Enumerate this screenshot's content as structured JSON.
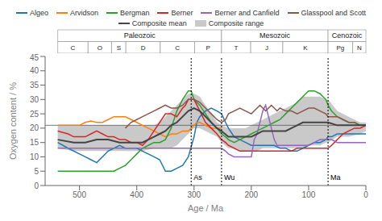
{
  "chart_data": {
    "type": "line",
    "xlabel": "Age / Ma",
    "ylabel": "Oxygen content / %",
    "xlim": [
      560,
      0
    ],
    "ylim": [
      0,
      45
    ],
    "xticks": [
      500,
      400,
      300,
      200,
      100,
      0
    ],
    "yticks": [
      0,
      5,
      10,
      15,
      20,
      25,
      30,
      35,
      40,
      45
    ],
    "grid": false,
    "legend": "top",
    "series": [
      {
        "name": "Algeo",
        "color": "#1f77b4",
        "x": [
          538,
          520,
          500,
          490,
          480,
          470,
          460,
          450,
          440,
          430,
          420,
          410,
          400,
          390,
          380,
          370,
          360,
          350,
          340,
          330,
          320,
          310,
          300,
          295,
          290,
          280,
          270,
          260,
          252,
          245,
          240,
          230,
          220,
          210,
          200,
          190,
          180,
          170,
          160,
          150,
          140,
          130,
          120,
          110,
          100,
          90,
          80,
          70,
          66,
          60,
          50,
          40,
          30,
          20,
          10,
          0
        ],
        "values": [
          15,
          13,
          11,
          10,
          9,
          8,
          10,
          12,
          13,
          14,
          13,
          13,
          13,
          12,
          11,
          10,
          9,
          5,
          5,
          6,
          7,
          10,
          17,
          22,
          24,
          26,
          27,
          26,
          25,
          22,
          20,
          17,
          16,
          15,
          14,
          14,
          14,
          14,
          14,
          13,
          13,
          12,
          12,
          13,
          14,
          15,
          15,
          16,
          17,
          17,
          18,
          18,
          18,
          18,
          18,
          18
        ]
      },
      {
        "name": "Arvidson",
        "color": "#ff7f0e",
        "x": [
          538,
          520,
          510,
          500,
          490,
          480,
          470,
          460,
          450,
          440,
          430,
          420,
          410,
          400,
          390,
          380,
          370,
          360,
          350,
          340,
          330,
          320,
          310,
          305,
          300,
          295,
          290,
          280,
          270,
          260,
          252
        ],
        "values": [
          21,
          21,
          21,
          21,
          22,
          22.5,
          22,
          22,
          23,
          24,
          24,
          24,
          23,
          22,
          21,
          20,
          19,
          18,
          17,
          18,
          18,
          19,
          19,
          20,
          21,
          22,
          22,
          21,
          20,
          20,
          20
        ]
      },
      {
        "name": "Bergman",
        "color": "#2ca02c",
        "x": [
          538,
          520,
          510,
          500,
          490,
          480,
          470,
          460,
          450,
          440,
          430,
          420,
          410,
          400,
          390,
          380,
          370,
          360,
          350,
          340,
          330,
          320,
          310,
          305,
          300,
          290,
          280,
          270,
          260,
          252,
          245,
          240,
          230,
          220,
          210,
          200,
          190,
          180,
          170,
          160,
          150,
          140,
          130,
          120,
          110,
          100,
          90,
          80,
          70,
          66,
          60,
          50,
          40,
          30,
          20,
          10,
          0
        ],
        "values": [
          5,
          5,
          5,
          5,
          5,
          5,
          5,
          5,
          5,
          5,
          6,
          7,
          9,
          11,
          13,
          14,
          15,
          15,
          16,
          20,
          26,
          30,
          33,
          33,
          30,
          28,
          25,
          22,
          20,
          18,
          17,
          16,
          15,
          16,
          17,
          18,
          19,
          20,
          21,
          22,
          23,
          25,
          27,
          29,
          31,
          33,
          33,
          32,
          30,
          28,
          26,
          24,
          23,
          22,
          22,
          21,
          21
        ]
      },
      {
        "name": "Berner",
        "color": "#d62728",
        "x": [
          538,
          520,
          510,
          500,
          490,
          480,
          470,
          460,
          450,
          440,
          430,
          420,
          410,
          400,
          390,
          380,
          370,
          360,
          350,
          340,
          330,
          320,
          315,
          310,
          305,
          300,
          295,
          290,
          280,
          270,
          260,
          252,
          245,
          240,
          230,
          220,
          210,
          200,
          190,
          180,
          170,
          160,
          150,
          140,
          130,
          120,
          110,
          100,
          90,
          80,
          70,
          66,
          60,
          50,
          40,
          30,
          20,
          10,
          0
        ],
        "values": [
          19,
          18,
          17,
          17,
          17,
          18,
          19,
          18,
          17,
          17,
          16,
          16,
          15,
          15,
          14,
          16,
          19,
          22,
          25,
          25,
          24,
          27,
          28,
          30,
          30,
          30,
          28,
          26,
          22,
          20,
          18,
          16,
          15,
          14,
          13,
          12,
          12,
          12,
          12,
          12,
          12,
          12,
          12,
          12,
          12,
          13,
          13,
          13,
          13,
          13,
          13,
          13,
          14,
          16,
          18,
          19,
          20,
          20,
          21
        ]
      },
      {
        "name": "Berner and Canfield",
        "color": "#9467bd",
        "x": [
          538,
          520,
          510,
          500,
          490,
          480,
          470,
          460,
          450,
          440,
          430,
          420,
          410,
          400,
          390,
          380,
          370,
          360,
          350,
          340,
          330,
          320,
          310,
          300,
          290,
          280,
          270,
          260,
          252,
          245,
          240,
          230,
          220,
          210,
          200,
          195,
          190,
          185,
          180,
          175,
          170,
          165,
          160,
          155,
          150,
          140,
          130,
          120,
          110,
          100,
          90,
          80,
          70,
          66,
          60,
          50,
          40,
          30,
          20,
          10,
          0
        ],
        "values": [
          13,
          13,
          13,
          13,
          13,
          13,
          13,
          13,
          13,
          13,
          13,
          13,
          13,
          13,
          13,
          13,
          13,
          13,
          13,
          13,
          13,
          13,
          13,
          13,
          13,
          13,
          13,
          13,
          13,
          12,
          11,
          10,
          10,
          10,
          10,
          16,
          18,
          22,
          26,
          28,
          24,
          20,
          16,
          14,
          14,
          14,
          14,
          14,
          14,
          14,
          15,
          16,
          16,
          16,
          16,
          15,
          15,
          15,
          15,
          15,
          15
        ]
      },
      {
        "name": "Glasspool and Scott",
        "color": "#8c564b",
        "x": [
          420,
          410,
          400,
          390,
          380,
          370,
          360,
          350,
          340,
          330,
          320,
          310,
          300,
          290,
          280,
          270,
          260,
          252,
          245,
          240,
          230,
          220,
          210,
          200,
          195,
          190,
          185,
          180,
          175,
          170,
          165,
          160,
          155,
          150,
          140,
          130,
          120,
          110,
          100,
          90,
          80,
          70,
          66,
          60,
          50,
          40,
          30,
          20,
          10,
          0
        ],
        "values": [
          20,
          22,
          23,
          24,
          25,
          26,
          27,
          28,
          27,
          27,
          28,
          30,
          30,
          29,
          27,
          25,
          23,
          22,
          23,
          25,
          26,
          27,
          26,
          25,
          26,
          27,
          28,
          27,
          26,
          27,
          28,
          27,
          26,
          27,
          26,
          26,
          25,
          26,
          27,
          27,
          26,
          25,
          24,
          24,
          24,
          23,
          22,
          22,
          21,
          21
        ]
      },
      {
        "name": "Composite mean",
        "color": "#444444",
        "x": [
          538,
          510,
          490,
          470,
          450,
          430,
          410,
          390,
          370,
          360,
          350,
          340,
          330,
          320,
          310,
          300,
          290,
          280,
          270,
          260,
          252,
          240,
          230,
          220,
          210,
          200,
          190,
          180,
          170,
          160,
          150,
          140,
          130,
          120,
          110,
          100,
          90,
          80,
          70,
          66,
          50,
          30,
          10,
          0
        ],
        "values": [
          16,
          15,
          15,
          16,
          16,
          15,
          15,
          15,
          17,
          18,
          19,
          21,
          22,
          24,
          26,
          27,
          26,
          24,
          22,
          20,
          19,
          17,
          17,
          17,
          17,
          17,
          18,
          19,
          19,
          19,
          19,
          19,
          20,
          21,
          22,
          22,
          22,
          22,
          22,
          22,
          21,
          21,
          21,
          21
        ]
      }
    ],
    "band": {
      "name": "Composite range",
      "color": "#bbbbbb",
      "x": [
        538,
        510,
        490,
        470,
        450,
        430,
        410,
        390,
        370,
        360,
        350,
        340,
        330,
        320,
        310,
        300,
        290,
        280,
        270,
        260,
        252,
        240,
        230,
        220,
        210,
        200,
        190,
        180,
        170,
        160,
        150,
        140,
        130,
        120,
        110,
        100,
        90,
        80,
        70,
        66,
        50,
        30,
        10,
        0
      ],
      "lower": [
        13,
        12,
        12,
        12,
        12,
        12,
        12,
        12,
        13,
        13,
        13,
        13,
        14,
        16,
        18,
        20,
        20,
        19,
        18,
        17,
        15,
        13,
        13,
        12,
        12,
        12,
        12,
        13,
        13,
        13,
        13,
        13,
        13,
        13,
        13,
        14,
        14,
        14,
        15,
        15,
        17,
        17,
        18,
        19
      ],
      "upper": [
        21,
        21,
        21,
        21,
        21,
        21,
        21,
        21,
        21,
        22,
        24,
        26,
        28,
        30,
        32,
        32,
        31,
        28,
        25,
        22,
        21,
        20,
        20,
        20,
        20,
        21,
        22,
        23,
        24,
        25,
        26,
        27,
        28,
        29,
        31,
        31,
        31,
        31,
        30,
        30,
        26,
        24,
        22,
        22
      ]
    },
    "reference_line": 21,
    "vertical_lines": [
      {
        "x": 305,
        "label": "As"
      },
      {
        "x": 252,
        "label": "Wu"
      },
      {
        "x": 66,
        "label": "Ma"
      }
    ],
    "vertical_label_y": 3,
    "periods": [
      {
        "label": "C",
        "start": 538,
        "end": 485
      },
      {
        "label": "O",
        "start": 485,
        "end": 444
      },
      {
        "label": "S",
        "start": 444,
        "end": 419
      },
      {
        "label": "D",
        "start": 419,
        "end": 359
      },
      {
        "label": "C",
        "start": 359,
        "end": 299
      },
      {
        "label": "P",
        "start": 299,
        "end": 252
      },
      {
        "label": "T",
        "start": 252,
        "end": 201
      },
      {
        "label": "J",
        "start": 201,
        "end": 145
      },
      {
        "label": "K",
        "start": 145,
        "end": 66
      },
      {
        "label": "Pg",
        "start": 66,
        "end": 23
      },
      {
        "label": "N",
        "start": 23,
        "end": 0
      }
    ],
    "eras": [
      {
        "label": "Paleozoic",
        "start": 538,
        "end": 252
      },
      {
        "label": "Mesozoic",
        "start": 252,
        "end": 66
      },
      {
        "label": "Cenozoic",
        "start": 66,
        "end": 0
      }
    ]
  }
}
